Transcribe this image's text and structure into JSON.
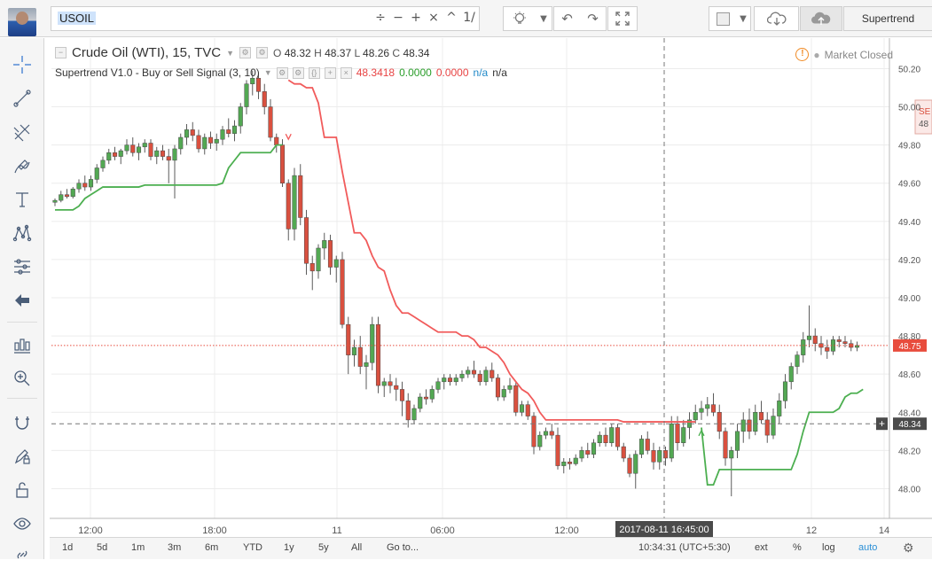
{
  "toolbar": {
    "symbol": "USOIL",
    "symbol_ops": [
      "÷",
      "−",
      "+",
      "×",
      "^",
      "1/"
    ],
    "indicator_button": "Supertrend"
  },
  "chart_title": "Crude Oil (WTI), 15, TVC",
  "ohlc": {
    "o_label": "O",
    "o": "48.32",
    "h_label": "H",
    "h": "48.37",
    "l_label": "L",
    "l": "48.26",
    "c_label": "C",
    "c": "48.34"
  },
  "indicator": {
    "name": "Supertrend V1.0 - Buy or Sell Signal (3, 10)",
    "value1": "48.3418",
    "value2": "0.0000",
    "value3": "0.0000",
    "na1": "n/a",
    "na2": "n/a"
  },
  "market_status": "Market Closed",
  "price_axis": {
    "ticks": [
      "50.20",
      "50.00",
      "49.80",
      "49.60",
      "49.40",
      "49.20",
      "49.00",
      "48.80",
      "48.60",
      "48.40",
      "48.20",
      "48.00"
    ],
    "last_price": "48.75",
    "crosshair_price": "48.34",
    "side_label_top": "SE",
    "side_label_bottom": "48"
  },
  "time_axis": {
    "ticks": [
      "12:00",
      "18:00",
      "11",
      "06:00",
      "12:00",
      "12",
      "14"
    ],
    "crosshair_label": "2017-08-11 16:45:00"
  },
  "bottombar": {
    "ranges": [
      "1d",
      "5d",
      "1m",
      "3m",
      "6m",
      "YTD",
      "1y",
      "5y",
      "All"
    ],
    "goto": "Go to...",
    "clock": "10:34:31 (UTC+5:30)",
    "ext": "ext",
    "percent": "%",
    "log": "log",
    "auto": "auto"
  },
  "colors": {
    "up": "#53a853",
    "down": "#d9503f",
    "supertrend_down": "#f15b5b",
    "supertrend_up": "#4caf50",
    "last_price": "#e84c3d"
  },
  "chart_data": {
    "type": "candlestick",
    "symbol": "Crude Oil (WTI)",
    "interval": "15",
    "source": "TVC",
    "ylim": [
      47.9,
      50.25
    ],
    "candles": [
      [
        49.5,
        49.52,
        49.48,
        49.51
      ],
      [
        49.51,
        49.56,
        49.5,
        49.54
      ],
      [
        49.54,
        49.57,
        49.52,
        49.53
      ],
      [
        49.53,
        49.58,
        49.52,
        49.57
      ],
      [
        49.57,
        49.62,
        49.55,
        49.6
      ],
      [
        49.6,
        49.64,
        49.56,
        49.58
      ],
      [
        49.58,
        49.64,
        49.56,
        49.62
      ],
      [
        49.62,
        49.7,
        49.6,
        49.68
      ],
      [
        49.68,
        49.74,
        49.66,
        49.72
      ],
      [
        49.72,
        49.78,
        49.7,
        49.76
      ],
      [
        49.76,
        49.79,
        49.72,
        49.74
      ],
      [
        49.74,
        49.78,
        49.7,
        49.77
      ],
      [
        49.77,
        49.83,
        49.75,
        49.8
      ],
      [
        49.8,
        49.84,
        49.74,
        49.76
      ],
      [
        49.76,
        49.81,
        49.72,
        49.79
      ],
      [
        49.79,
        49.83,
        49.76,
        49.81
      ],
      [
        49.81,
        49.83,
        49.72,
        49.74
      ],
      [
        49.74,
        49.79,
        49.7,
        49.77
      ],
      [
        49.77,
        49.8,
        49.72,
        49.74
      ],
      [
        49.74,
        49.78,
        49.6,
        49.72
      ],
      [
        49.72,
        49.8,
        49.52,
        49.78
      ],
      [
        49.78,
        49.86,
        49.75,
        49.84
      ],
      [
        49.84,
        49.91,
        49.8,
        49.88
      ],
      [
        49.88,
        49.92,
        49.82,
        49.85
      ],
      [
        49.85,
        49.88,
        49.76,
        49.78
      ],
      [
        49.78,
        49.86,
        49.75,
        49.84
      ],
      [
        49.84,
        49.87,
        49.78,
        49.81
      ],
      [
        49.81,
        49.86,
        49.77,
        49.83
      ],
      [
        49.83,
        49.9,
        49.8,
        49.88
      ],
      [
        49.88,
        49.94,
        49.84,
        49.86
      ],
      [
        49.86,
        49.93,
        49.82,
        49.9
      ],
      [
        49.9,
        50.02,
        49.86,
        50.0
      ],
      [
        50.0,
        50.14,
        49.96,
        50.12
      ],
      [
        50.12,
        50.19,
        50.06,
        50.15
      ],
      [
        50.15,
        50.18,
        50.04,
        50.08
      ],
      [
        50.08,
        50.12,
        49.96,
        50.0
      ],
      [
        50.0,
        50.04,
        49.82,
        49.84
      ],
      [
        49.84,
        49.86,
        49.76,
        49.8
      ],
      [
        49.8,
        49.83,
        49.58,
        49.6
      ],
      [
        49.6,
        49.62,
        49.3,
        49.36
      ],
      [
        49.36,
        49.68,
        49.3,
        49.64
      ],
      [
        49.64,
        49.7,
        49.38,
        49.42
      ],
      [
        49.42,
        49.46,
        49.12,
        49.18
      ],
      [
        49.18,
        49.22,
        49.04,
        49.14
      ],
      [
        49.14,
        49.28,
        49.1,
        49.26
      ],
      [
        49.26,
        49.34,
        49.2,
        49.3
      ],
      [
        49.3,
        49.33,
        49.12,
        49.16
      ],
      [
        49.16,
        49.22,
        49.08,
        49.2
      ],
      [
        49.2,
        49.24,
        48.84,
        48.86
      ],
      [
        48.86,
        48.9,
        48.6,
        48.7
      ],
      [
        48.7,
        48.78,
        48.64,
        48.74
      ],
      [
        48.74,
        48.8,
        48.6,
        48.64
      ],
      [
        48.64,
        48.7,
        48.52,
        48.66
      ],
      [
        48.66,
        48.9,
        48.62,
        48.86
      ],
      [
        48.86,
        48.9,
        48.5,
        48.54
      ],
      [
        48.54,
        48.58,
        48.48,
        48.56
      ],
      [
        48.56,
        48.6,
        48.5,
        48.54
      ],
      [
        48.54,
        48.58,
        48.46,
        48.52
      ],
      [
        48.52,
        48.56,
        48.38,
        48.46
      ],
      [
        48.46,
        48.5,
        48.32,
        48.36
      ],
      [
        48.36,
        48.44,
        48.34,
        48.42
      ],
      [
        48.42,
        48.5,
        48.4,
        48.48
      ],
      [
        48.48,
        48.52,
        48.44,
        48.47
      ],
      [
        48.47,
        48.54,
        48.45,
        48.52
      ],
      [
        48.52,
        48.58,
        48.5,
        48.56
      ],
      [
        48.56,
        48.6,
        48.52,
        48.58
      ],
      [
        48.58,
        48.6,
        48.54,
        48.56
      ],
      [
        48.56,
        48.6,
        48.54,
        48.58
      ],
      [
        48.58,
        48.62,
        48.56,
        48.6
      ],
      [
        48.6,
        48.64,
        48.58,
        48.62
      ],
      [
        48.62,
        48.67,
        48.58,
        48.6
      ],
      [
        48.6,
        48.62,
        48.54,
        48.56
      ],
      [
        48.56,
        48.64,
        48.54,
        48.62
      ],
      [
        48.62,
        48.66,
        48.56,
        48.58
      ],
      [
        48.58,
        48.6,
        48.46,
        48.48
      ],
      [
        48.48,
        48.54,
        48.46,
        48.52
      ],
      [
        48.52,
        48.58,
        48.5,
        48.54
      ],
      [
        48.54,
        48.56,
        48.38,
        48.4
      ],
      [
        48.4,
        48.46,
        48.38,
        48.44
      ],
      [
        48.44,
        48.46,
        48.36,
        48.38
      ],
      [
        48.38,
        48.4,
        48.18,
        48.22
      ],
      [
        48.22,
        48.3,
        48.2,
        48.28
      ],
      [
        48.28,
        48.32,
        48.26,
        48.3
      ],
      [
        48.3,
        48.34,
        48.26,
        48.28
      ],
      [
        48.28,
        48.32,
        48.1,
        48.12
      ],
      [
        48.12,
        48.16,
        48.08,
        48.14
      ],
      [
        48.14,
        48.16,
        48.1,
        48.13
      ],
      [
        48.13,
        48.18,
        48.12,
        48.16
      ],
      [
        48.16,
        48.22,
        48.14,
        48.2
      ],
      [
        48.2,
        48.24,
        48.16,
        48.18
      ],
      [
        48.18,
        48.26,
        48.16,
        48.24
      ],
      [
        48.24,
        48.3,
        48.22,
        48.28
      ],
      [
        48.28,
        48.32,
        48.22,
        48.24
      ],
      [
        48.24,
        48.34,
        48.22,
        48.32
      ],
      [
        48.32,
        48.34,
        48.2,
        48.22
      ],
      [
        48.22,
        48.24,
        48.14,
        48.16
      ],
      [
        48.16,
        48.18,
        48.06,
        48.08
      ],
      [
        48.08,
        48.2,
        48.0,
        48.18
      ],
      [
        48.18,
        48.28,
        48.16,
        48.26
      ],
      [
        48.26,
        48.3,
        48.18,
        48.2
      ],
      [
        48.2,
        48.24,
        48.1,
        48.14
      ],
      [
        48.14,
        48.22,
        48.1,
        48.2
      ],
      [
        48.2,
        48.22,
        48.12,
        48.16
      ],
      [
        48.16,
        48.38,
        48.14,
        48.34
      ],
      [
        48.34,
        48.38,
        48.2,
        48.24
      ],
      [
        48.24,
        48.36,
        48.22,
        48.32
      ],
      [
        48.32,
        48.4,
        48.26,
        48.36
      ],
      [
        48.36,
        48.44,
        48.34,
        48.4
      ],
      [
        48.4,
        48.46,
        48.36,
        48.42
      ],
      [
        48.42,
        48.48,
        48.38,
        48.44
      ],
      [
        48.44,
        48.5,
        48.38,
        48.4
      ],
      [
        48.4,
        48.44,
        48.26,
        48.3
      ],
      [
        48.3,
        48.32,
        48.12,
        48.16
      ],
      [
        48.16,
        48.22,
        47.96,
        48.2
      ],
      [
        48.2,
        48.34,
        48.16,
        48.3
      ],
      [
        48.3,
        48.4,
        48.24,
        48.36
      ],
      [
        48.36,
        48.42,
        48.26,
        48.3
      ],
      [
        48.3,
        48.44,
        48.28,
        48.4
      ],
      [
        48.4,
        48.46,
        48.34,
        48.36
      ],
      [
        48.36,
        48.4,
        48.24,
        48.28
      ],
      [
        48.28,
        48.42,
        48.26,
        48.38
      ],
      [
        48.38,
        48.5,
        48.34,
        48.46
      ],
      [
        48.46,
        48.6,
        48.42,
        48.56
      ],
      [
        48.56,
        48.66,
        48.52,
        48.64
      ],
      [
        48.64,
        48.72,
        48.6,
        48.7
      ],
      [
        48.7,
        48.82,
        48.66,
        48.78
      ],
      [
        48.78,
        48.96,
        48.74,
        48.8
      ],
      [
        48.8,
        48.84,
        48.72,
        48.76
      ],
      [
        48.76,
        48.8,
        48.7,
        48.74
      ],
      [
        48.74,
        48.78,
        48.68,
        48.72
      ],
      [
        48.72,
        48.8,
        48.7,
        48.78
      ],
      [
        48.78,
        48.8,
        48.74,
        48.77
      ],
      [
        48.77,
        48.8,
        48.74,
        48.76
      ],
      [
        48.76,
        48.78,
        48.72,
        48.74
      ],
      [
        48.74,
        48.77,
        48.72,
        48.75
      ]
    ],
    "supertrend_down": [
      [
        39,
        50.14
      ],
      [
        40,
        50.12
      ],
      [
        41,
        50.12
      ],
      [
        42,
        50.1
      ],
      [
        43,
        50.1
      ],
      [
        44,
        50.02
      ],
      [
        45,
        49.84
      ],
      [
        46,
        49.84
      ],
      [
        47,
        49.84
      ],
      [
        48,
        49.66
      ],
      [
        49,
        49.5
      ],
      [
        50,
        49.34
      ],
      [
        51,
        49.34
      ],
      [
        52,
        49.3
      ],
      [
        53,
        49.22
      ],
      [
        54,
        49.16
      ],
      [
        55,
        49.14
      ],
      [
        56,
        49.04
      ],
      [
        57,
        48.96
      ],
      [
        58,
        48.92
      ],
      [
        59,
        48.92
      ],
      [
        60,
        48.9
      ],
      [
        61,
        48.88
      ],
      [
        62,
        48.86
      ],
      [
        63,
        48.84
      ],
      [
        64,
        48.82
      ],
      [
        65,
        48.82
      ],
      [
        66,
        48.82
      ],
      [
        67,
        48.82
      ],
      [
        68,
        48.8
      ],
      [
        69,
        48.8
      ],
      [
        70,
        48.78
      ],
      [
        71,
        48.74
      ],
      [
        72,
        48.74
      ],
      [
        73,
        48.72
      ],
      [
        74,
        48.7
      ],
      [
        75,
        48.66
      ],
      [
        76,
        48.6
      ],
      [
        77,
        48.56
      ],
      [
        78,
        48.52
      ],
      [
        79,
        48.5
      ],
      [
        80,
        48.46
      ],
      [
        81,
        48.4
      ],
      [
        82,
        48.36
      ],
      [
        83,
        48.36
      ],
      [
        84,
        48.36
      ],
      [
        85,
        48.36
      ],
      [
        86,
        48.36
      ],
      [
        87,
        48.36
      ],
      [
        88,
        48.36
      ],
      [
        89,
        48.36
      ],
      [
        90,
        48.36
      ],
      [
        91,
        48.36
      ],
      [
        92,
        48.36
      ],
      [
        93,
        48.36
      ],
      [
        94,
        48.36
      ],
      [
        95,
        48.35
      ],
      [
        96,
        48.35
      ],
      [
        97,
        48.35
      ],
      [
        98,
        48.35
      ],
      [
        99,
        48.35
      ],
      [
        100,
        48.35
      ],
      [
        101,
        48.35
      ],
      [
        102,
        48.35
      ],
      [
        103,
        48.35
      ],
      [
        104,
        48.35
      ],
      [
        105,
        48.35
      ],
      [
        106,
        48.35
      ],
      [
        107,
        48.35
      ]
    ],
    "supertrend_up": [
      [
        0,
        49.46
      ],
      [
        1,
        49.46
      ],
      [
        2,
        49.46
      ],
      [
        3,
        49.46
      ],
      [
        4,
        49.48
      ],
      [
        5,
        49.52
      ],
      [
        6,
        49.54
      ],
      [
        7,
        49.56
      ],
      [
        8,
        49.58
      ],
      [
        9,
        49.58
      ],
      [
        10,
        49.58
      ],
      [
        11,
        49.58
      ],
      [
        12,
        49.58
      ],
      [
        13,
        49.58
      ],
      [
        14,
        49.58
      ],
      [
        15,
        49.59
      ],
      [
        16,
        49.59
      ],
      [
        17,
        49.59
      ],
      [
        18,
        49.59
      ],
      [
        19,
        49.59
      ],
      [
        20,
        49.59
      ],
      [
        21,
        49.59
      ],
      [
        22,
        49.59
      ],
      [
        23,
        49.59
      ],
      [
        24,
        49.59
      ],
      [
        25,
        49.59
      ],
      [
        26,
        49.59
      ],
      [
        27,
        49.59
      ],
      [
        28,
        49.6
      ],
      [
        29,
        49.68
      ],
      [
        30,
        49.72
      ],
      [
        31,
        49.76
      ],
      [
        32,
        49.76
      ],
      [
        33,
        49.76
      ],
      [
        34,
        49.76
      ],
      [
        35,
        49.76
      ],
      [
        36,
        49.76
      ],
      [
        37,
        49.8
      ],
      [
        38,
        49.8
      ],
      [
        108,
        48.32
      ],
      [
        109,
        48.02
      ],
      [
        110,
        48.02
      ],
      [
        111,
        48.1
      ],
      [
        112,
        48.1
      ],
      [
        113,
        48.1
      ],
      [
        114,
        48.1
      ],
      [
        115,
        48.1
      ],
      [
        116,
        48.1
      ],
      [
        117,
        48.1
      ],
      [
        118,
        48.1
      ],
      [
        119,
        48.1
      ],
      [
        120,
        48.1
      ],
      [
        121,
        48.1
      ],
      [
        122,
        48.1
      ],
      [
        123,
        48.1
      ],
      [
        124,
        48.18
      ],
      [
        125,
        48.3
      ],
      [
        126,
        48.4
      ],
      [
        127,
        48.4
      ],
      [
        128,
        48.4
      ],
      [
        129,
        48.4
      ],
      [
        130,
        48.4
      ],
      [
        131,
        48.42
      ],
      [
        132,
        48.48
      ],
      [
        133,
        48.5
      ],
      [
        134,
        48.5
      ],
      [
        135,
        48.52
      ]
    ]
  }
}
